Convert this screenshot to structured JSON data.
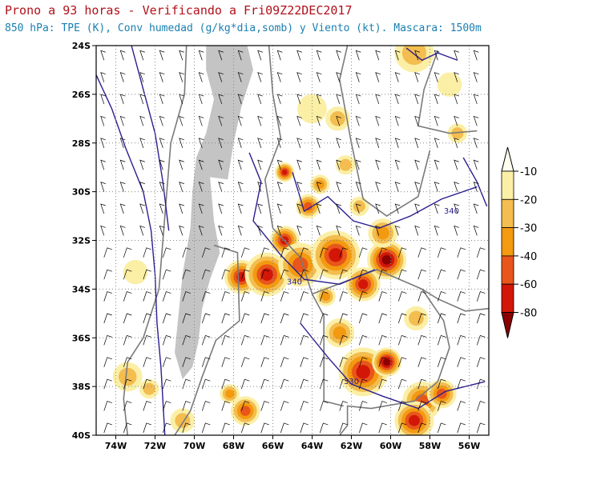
{
  "title": "Prono a 93 horas - Verificando a Fri09Z22DEC2017",
  "subtitle": "850 hPa: TPE (K), Conv humedad (g/kg*dia,somb) y Viento (kt). Mascara: 1500m",
  "colors": {
    "title": "#b0101a",
    "subtitle": "#1a7fb0",
    "contour": "#2a1f8f",
    "mask": "#c4c4c4",
    "coast": "#7a7a7a",
    "grid": "#888888"
  },
  "chart_data": {
    "type": "heatmap",
    "x": {
      "label": "",
      "ticks": [
        "74W",
        "72W",
        "70W",
        "68W",
        "66W",
        "64W",
        "62W",
        "60W",
        "58W",
        "56W"
      ],
      "range": [
        -75,
        -55
      ]
    },
    "y": {
      "label": "",
      "ticks": [
        "24S",
        "26S",
        "28S",
        "30S",
        "32S",
        "34S",
        "36S",
        "38S",
        "40S"
      ],
      "range": [
        -40,
        -24
      ]
    },
    "grid": true,
    "colorbar": {
      "position": "right",
      "levels": [
        "-10",
        "-20",
        "-30",
        "-40",
        "-60",
        "-80"
      ],
      "colors": [
        "#fffff0",
        "#fbefa6",
        "#f3bd50",
        "#f39a10",
        "#e8561b",
        "#d21708",
        "#8b0000"
      ]
    },
    "contour_labels": [
      {
        "text": "340",
        "lon": -64.9,
        "lat": -33.8
      },
      {
        "text": "340",
        "lon": -56.9,
        "lat": -30.9
      },
      {
        "text": "330",
        "lon": -62.0,
        "lat": -37.9
      }
    ],
    "convergence_blobs": [
      {
        "lon": -64.0,
        "lat": -26.6,
        "r": 0.6,
        "v": 1
      },
      {
        "lon": -62.7,
        "lat": -27.0,
        "r": 0.5,
        "v": 2
      },
      {
        "lon": -58.8,
        "lat": -24.3,
        "r": 0.8,
        "v": 2
      },
      {
        "lon": -57.0,
        "lat": -25.6,
        "r": 0.5,
        "v": 1
      },
      {
        "lon": -65.4,
        "lat": -29.2,
        "r": 0.4,
        "v": 5
      },
      {
        "lon": -64.2,
        "lat": -30.6,
        "r": 0.5,
        "v": 4
      },
      {
        "lon": -63.6,
        "lat": -29.7,
        "r": 0.4,
        "v": 3
      },
      {
        "lon": -65.4,
        "lat": -32.0,
        "r": 0.6,
        "v": 5
      },
      {
        "lon": -67.6,
        "lat": -33.5,
        "r": 0.7,
        "v": 5
      },
      {
        "lon": -66.3,
        "lat": -33.4,
        "r": 0.9,
        "v": 5
      },
      {
        "lon": -64.6,
        "lat": -33.0,
        "r": 0.9,
        "v": 4
      },
      {
        "lon": -62.8,
        "lat": -32.6,
        "r": 1.0,
        "v": 5
      },
      {
        "lon": -60.2,
        "lat": -32.8,
        "r": 0.8,
        "v": 6
      },
      {
        "lon": -61.4,
        "lat": -33.8,
        "r": 0.7,
        "v": 5
      },
      {
        "lon": -60.4,
        "lat": -31.7,
        "r": 0.6,
        "v": 3
      },
      {
        "lon": -62.6,
        "lat": -35.8,
        "r": 0.6,
        "v": 3
      },
      {
        "lon": -61.4,
        "lat": -37.4,
        "r": 1.0,
        "v": 5
      },
      {
        "lon": -60.2,
        "lat": -37.0,
        "r": 0.6,
        "v": 6
      },
      {
        "lon": -58.4,
        "lat": -38.6,
        "r": 0.8,
        "v": 4
      },
      {
        "lon": -58.8,
        "lat": -39.4,
        "r": 0.8,
        "v": 5
      },
      {
        "lon": -57.4,
        "lat": -38.3,
        "r": 0.6,
        "v": 4
      },
      {
        "lon": -67.4,
        "lat": -39.0,
        "r": 0.6,
        "v": 4
      },
      {
        "lon": -68.2,
        "lat": -38.3,
        "r": 0.4,
        "v": 3
      },
      {
        "lon": -70.6,
        "lat": -39.4,
        "r": 0.5,
        "v": 2
      },
      {
        "lon": -73.4,
        "lat": -37.6,
        "r": 0.6,
        "v": 2
      },
      {
        "lon": -72.3,
        "lat": -38.1,
        "r": 0.4,
        "v": 2
      },
      {
        "lon": -73.0,
        "lat": -33.3,
        "r": 0.5,
        "v": 1
      },
      {
        "lon": -62.3,
        "lat": -28.9,
        "r": 0.4,
        "v": 2
      },
      {
        "lon": -56.6,
        "lat": -27.6,
        "r": 0.4,
        "v": 2
      },
      {
        "lon": -58.7,
        "lat": -35.2,
        "r": 0.5,
        "v": 2
      },
      {
        "lon": -63.3,
        "lat": -34.3,
        "r": 0.4,
        "v": 3
      },
      {
        "lon": -61.6,
        "lat": -30.6,
        "r": 0.4,
        "v": 2
      }
    ]
  }
}
